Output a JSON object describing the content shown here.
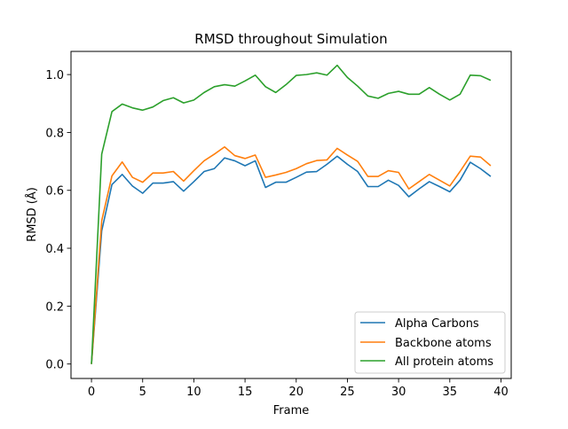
{
  "chart_data": {
    "type": "line",
    "title": "RMSD throughout Simulation",
    "xlabel": "Frame",
    "ylabel": "RMSD (Å)",
    "xlim": [
      -2,
      41
    ],
    "ylim": [
      -0.05,
      1.08
    ],
    "x_ticks": [
      0,
      5,
      10,
      15,
      20,
      25,
      30,
      35,
      40
    ],
    "y_ticks": [
      0.0,
      0.2,
      0.4,
      0.6,
      0.8,
      1.0
    ],
    "x_tick_labels": [
      "0",
      "5",
      "10",
      "15",
      "20",
      "25",
      "30",
      "35",
      "40"
    ],
    "y_tick_labels": [
      "0.0",
      "0.2",
      "0.4",
      "0.6",
      "0.8",
      "1.0"
    ],
    "grid": false,
    "legend_position": "bottom-right",
    "x": [
      0,
      1,
      2,
      3,
      4,
      5,
      6,
      7,
      8,
      9,
      10,
      11,
      12,
      13,
      14,
      15,
      16,
      17,
      18,
      19,
      20,
      21,
      22,
      23,
      24,
      25,
      26,
      27,
      28,
      29,
      30,
      31,
      32,
      33,
      34,
      35,
      36,
      37,
      38,
      39
    ],
    "series": [
      {
        "name": "Alpha Carbons",
        "color": "#1f77b4",
        "values": [
          0.0,
          0.46,
          0.62,
          0.655,
          0.615,
          0.59,
          0.625,
          0.625,
          0.63,
          0.597,
          0.63,
          0.665,
          0.675,
          0.712,
          0.702,
          0.685,
          0.702,
          0.61,
          0.628,
          0.628,
          0.645,
          0.663,
          0.665,
          0.69,
          0.718,
          0.69,
          0.665,
          0.613,
          0.613,
          0.635,
          0.617,
          0.578,
          0.605,
          0.63,
          0.613,
          0.595,
          0.635,
          0.697,
          0.675,
          0.648
        ]
      },
      {
        "name": "Backbone atoms",
        "color": "#ff7f0e",
        "values": [
          0.0,
          0.495,
          0.65,
          0.698,
          0.645,
          0.628,
          0.66,
          0.66,
          0.665,
          0.632,
          0.668,
          0.702,
          0.725,
          0.75,
          0.72,
          0.71,
          0.722,
          0.645,
          0.653,
          0.662,
          0.675,
          0.692,
          0.703,
          0.705,
          0.745,
          0.722,
          0.7,
          0.648,
          0.648,
          0.668,
          0.662,
          0.605,
          0.63,
          0.655,
          0.635,
          0.615,
          0.665,
          0.718,
          0.715,
          0.685
        ]
      },
      {
        "name": "All protein atoms",
        "color": "#2ca02c",
        "values": [
          0.0,
          0.725,
          0.872,
          0.898,
          0.885,
          0.877,
          0.888,
          0.91,
          0.92,
          0.902,
          0.912,
          0.938,
          0.958,
          0.965,
          0.96,
          0.978,
          0.998,
          0.958,
          0.938,
          0.965,
          0.997,
          1.0,
          1.006,
          0.998,
          1.032,
          0.99,
          0.96,
          0.926,
          0.918,
          0.935,
          0.942,
          0.932,
          0.932,
          0.955,
          0.932,
          0.912,
          0.932,
          0.998,
          0.996,
          0.98
        ]
      }
    ]
  }
}
